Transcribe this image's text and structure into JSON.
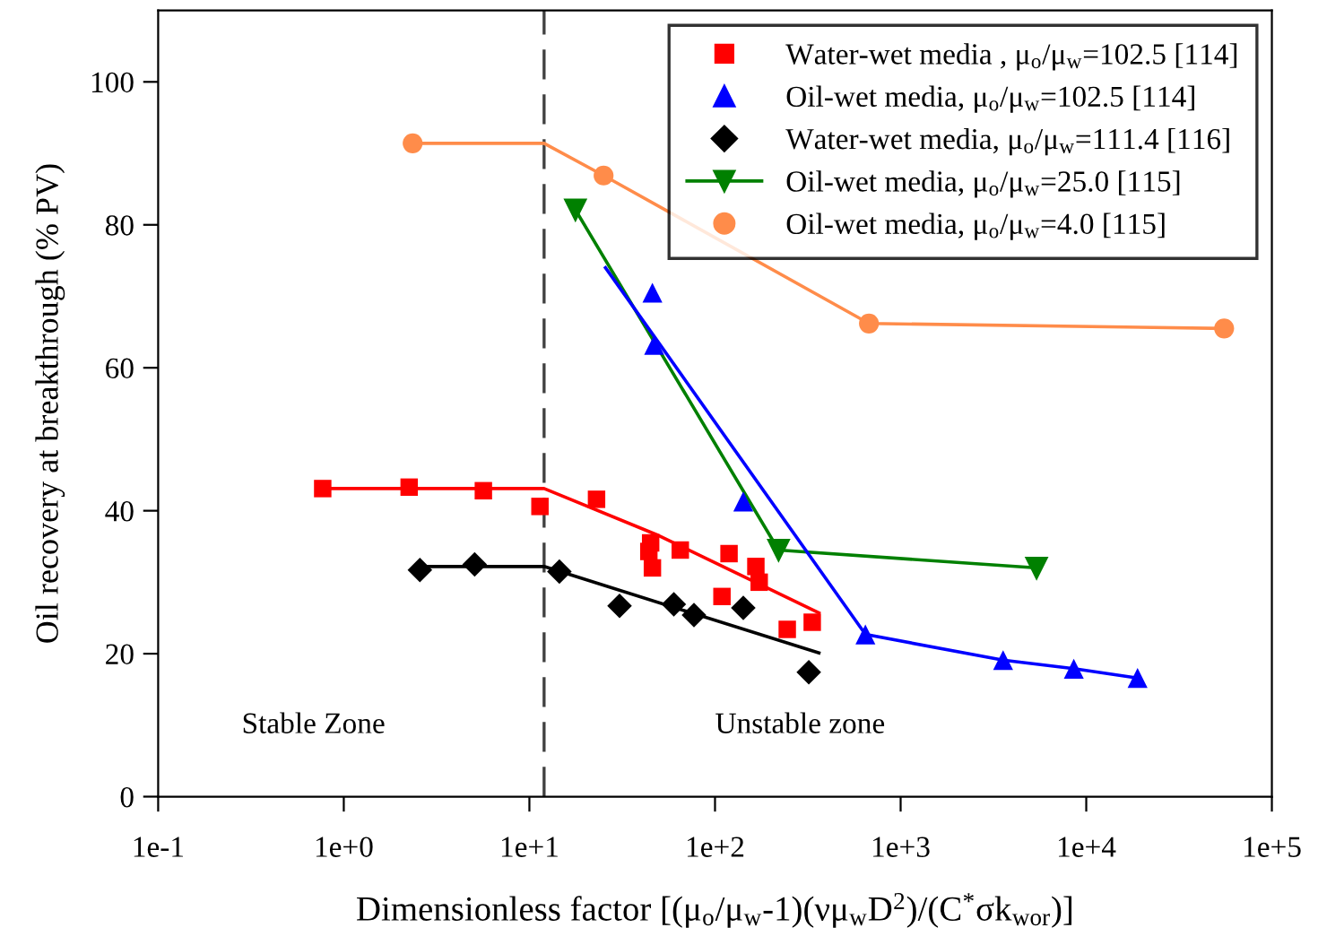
{
  "chart_data": {
    "type": "scatter",
    "xlabel": "Dimensionless factor [(μ$_{o}$/μ$_{w}$-1)(νμ$_{w}$D$^{2}$)/(C$^{*}$σk$_{wor}$)]",
    "ylabel": "Oil recovery at breakthrough (% PV)",
    "log": "x",
    "xlim": [
      0.1,
      100000
    ],
    "ylim": [
      0,
      110
    ],
    "xticks": [
      {
        "value": 0.1,
        "label": "1e-1"
      },
      {
        "value": 1,
        "label": "1e+0"
      },
      {
        "value": 10,
        "label": "1e+1"
      },
      {
        "value": 100,
        "label": "1e+2"
      },
      {
        "value": 1000,
        "label": "1e+3"
      },
      {
        "value": 10000,
        "label": "1e+4"
      },
      {
        "value": 100000,
        "label": "1e+5"
      }
    ],
    "yticks": [
      0,
      20,
      40,
      60,
      80,
      100
    ],
    "grid": false,
    "legend": "top right",
    "series": [
      {
        "name": "Water-wet media , μ$_{o}$/μ$_{w}$=102.5 [114]",
        "marker": "square",
        "color": "#ff0000",
        "x": [
          0.77,
          2.25,
          5.65,
          11.4,
          23,
          45,
          44,
          46,
          65,
          119,
          166,
          173,
          109,
          245,
          334
        ],
        "values": [
          43.1,
          43.3,
          42.8,
          40.6,
          41.6,
          35.5,
          34.3,
          32,
          34.5,
          34,
          32.2,
          30,
          28,
          23.4,
          24.4
        ]
      },
      {
        "name": "Oil-wet media, μ$_{o}$/μ$_{w}$=102.5 [114]",
        "marker": "triangle",
        "color": "#0000ff",
        "x": [
          46,
          47,
          142,
          646,
          3565,
          8570,
          18900
        ],
        "values": [
          70.5,
          63.2,
          41.3,
          22.7,
          19.1,
          17.9,
          16.6
        ]
      },
      {
        "name": "Water-wet media, μ$_{o}$/μ$_{w}$=111.4 [116]",
        "marker": "diamond",
        "color": "#000000",
        "x": [
          2.57,
          5.07,
          14.5,
          30.6,
          60,
          77,
          142,
          320
        ],
        "values": [
          31.7,
          32.5,
          31.5,
          26.7,
          26.9,
          25.4,
          26.4,
          17.4
        ]
      },
      {
        "name": "Oil-wet media, μ$_{o}$/μ$_{w}$=25.0 [115]",
        "type": "line",
        "marker": "triangle_down",
        "color": "#008000",
        "x": [
          17.7,
          220,
          5400
        ],
        "values": [
          82.1,
          34.5,
          32
        ]
      },
      {
        "name": "Oil-wet media, μ$_{o}$/μ$_{w}$=4.0 [115]",
        "marker": "circle",
        "color": "#ff8c4a",
        "x": [
          2.35,
          25.1,
          675,
          55300
        ],
        "values": [
          91.4,
          86.9,
          66.2,
          65.5
        ]
      },
      {
        "type": "line",
        "color": "#ff0000",
        "x": [
          0.77,
          12,
          50,
          363
        ],
        "values": [
          43.1,
          43.1,
          36.5,
          25.7
        ]
      },
      {
        "type": "line",
        "color": "#0000ff",
        "x": [
          25.7,
          646,
          3565,
          8570,
          18900
        ],
        "values": [
          74,
          22.7,
          19.1,
          17.9,
          16.6
        ]
      },
      {
        "type": "line",
        "color": "#000000",
        "x": [
          2.57,
          12,
          363
        ],
        "values": [
          32.2,
          32.2,
          20.1
        ]
      },
      {
        "type": "line",
        "color": "#ff8c4a",
        "x": [
          2.35,
          12,
          25.1,
          675,
          55300
        ],
        "values": [
          91.4,
          91.4,
          86.9,
          66.2,
          65.5
        ]
      }
    ],
    "ref_lines": [
      {
        "axis": "x",
        "value": 12,
        "color": "#404040",
        "line_style": "dashed"
      }
    ],
    "annotations": [
      "Stable Zone",
      "Unstable zone"
    ]
  }
}
